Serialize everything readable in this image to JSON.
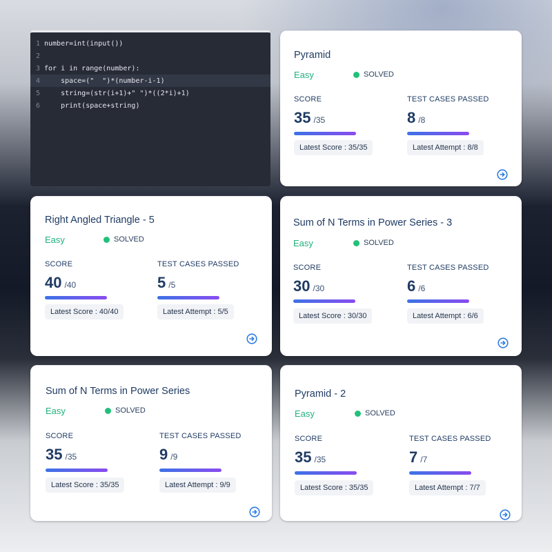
{
  "code": {
    "lines": [
      {
        "num": "1",
        "text": "number=int(input())"
      },
      {
        "num": "2",
        "text": ""
      },
      {
        "num": "3",
        "text": "for i in range(number):"
      },
      {
        "num": "4",
        "text": "    space=(\"  \")*(number-i-1)"
      },
      {
        "num": "5",
        "text": "    string=(str(i+1)+\" \")*((2*i)+1)"
      },
      {
        "num": "6",
        "text": "    print(space+string)"
      }
    ]
  },
  "labels": {
    "score": "SCORE",
    "test_cases": "TEST CASES PASSED",
    "solved": "SOLVED"
  },
  "cards": [
    {
      "title": "Pyramid",
      "difficulty": "Easy",
      "score": "35",
      "score_total": "/35",
      "cases": "8",
      "cases_total": "/8",
      "latest_score": "Latest Score : 35/35",
      "latest_attempt": "Latest Attempt : 8/8"
    },
    {
      "title": "Right Angled Triangle - 5",
      "difficulty": "Easy",
      "score": "40",
      "score_total": "/40",
      "cases": "5",
      "cases_total": "/5",
      "latest_score": "Latest Score : 40/40",
      "latest_attempt": "Latest Attempt : 5/5"
    },
    {
      "title": "Sum of N Terms in Power Series - 3",
      "difficulty": "Easy",
      "score": "30",
      "score_total": "/30",
      "cases": "6",
      "cases_total": "/6",
      "latest_score": "Latest Score : 30/30",
      "latest_attempt": "Latest Attempt : 6/6"
    },
    {
      "title": "Sum of N Terms in Power Series",
      "difficulty": "Easy",
      "score": "35",
      "score_total": "/35",
      "cases": "9",
      "cases_total": "/9",
      "latest_score": "Latest Score : 35/35",
      "latest_attempt": "Latest Attempt : 9/9"
    },
    {
      "title": "Pyramid - 2",
      "difficulty": "Easy",
      "score": "35",
      "score_total": "/35",
      "cases": "7",
      "cases_total": "/7",
      "latest_score": "Latest Score : 35/35",
      "latest_attempt": "Latest Attempt : 7/7"
    }
  ],
  "icons": {
    "open": "arrow-right-circle-icon",
    "status": "green-dot-icon"
  },
  "colors": {
    "accent": "#1f3b63",
    "easy": "#22b07d",
    "solved_dot": "#22c07a",
    "bar_start": "#3c73e6",
    "bar_end": "#8a4bf0",
    "code_bg": "#272b36"
  }
}
